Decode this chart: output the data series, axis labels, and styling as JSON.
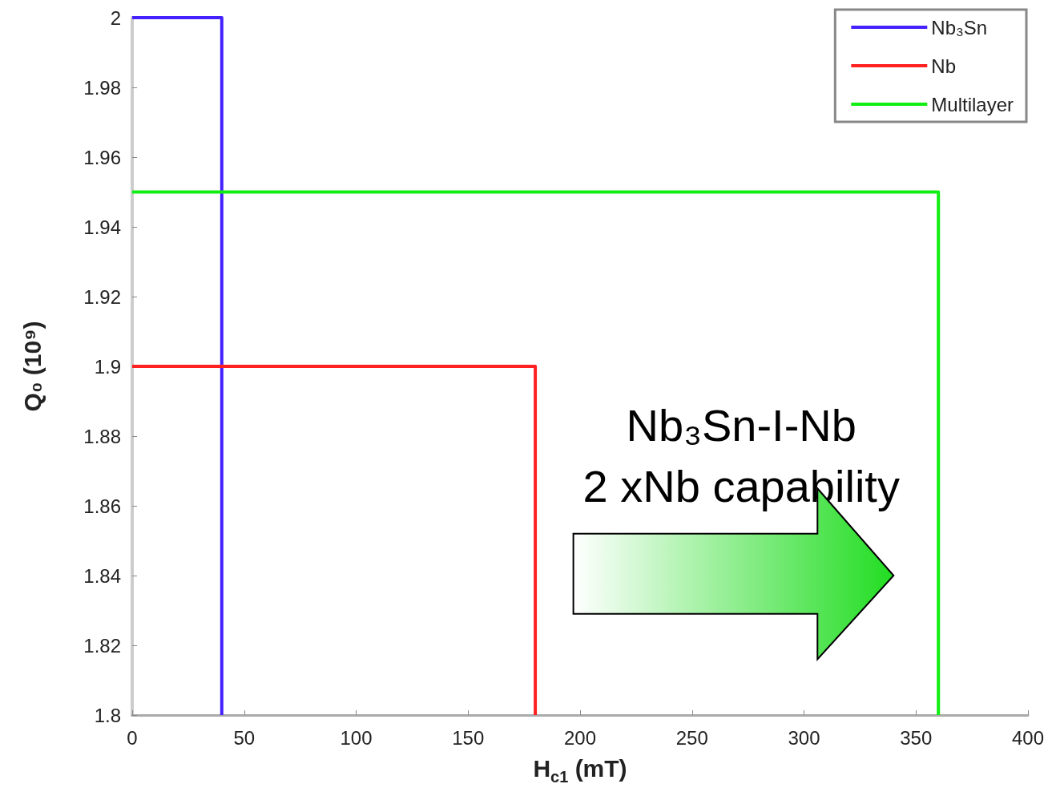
{
  "chart_data": {
    "type": "line",
    "xlabel": "H$_{c1}$ (mT)",
    "ylabel": "Q₀ (10⁹)",
    "series": [
      {
        "name": "Nb₃Sn",
        "color": "#4422ff",
        "x": [
          0,
          40,
          40
        ],
        "values": [
          2,
          2,
          1.8
        ]
      },
      {
        "name": "Nb",
        "color": "#ff2020",
        "x": [
          0,
          180,
          180
        ],
        "values": [
          1.9,
          1.9,
          1.8
        ]
      },
      {
        "name": "Multilayer",
        "color": "#11ee11",
        "x": [
          0,
          360,
          360
        ],
        "values": [
          1.95,
          1.95,
          1.8
        ]
      }
    ],
    "xlim": [
      0,
      400
    ],
    "xticks": [
      0,
      50,
      100,
      150,
      200,
      250,
      300,
      350,
      400
    ],
    "ylim": [
      1.8,
      2
    ],
    "yticks": [
      1.8,
      1.82,
      1.84,
      1.86,
      1.88,
      1.9,
      1.92,
      1.94,
      1.96,
      1.98,
      2
    ],
    "grid": false,
    "legend": "top right",
    "marker": "none",
    "line_style": "solid",
    "annotations": [
      "Nb₃Sn-I-Nb",
      "2 xNb capability"
    ]
  }
}
